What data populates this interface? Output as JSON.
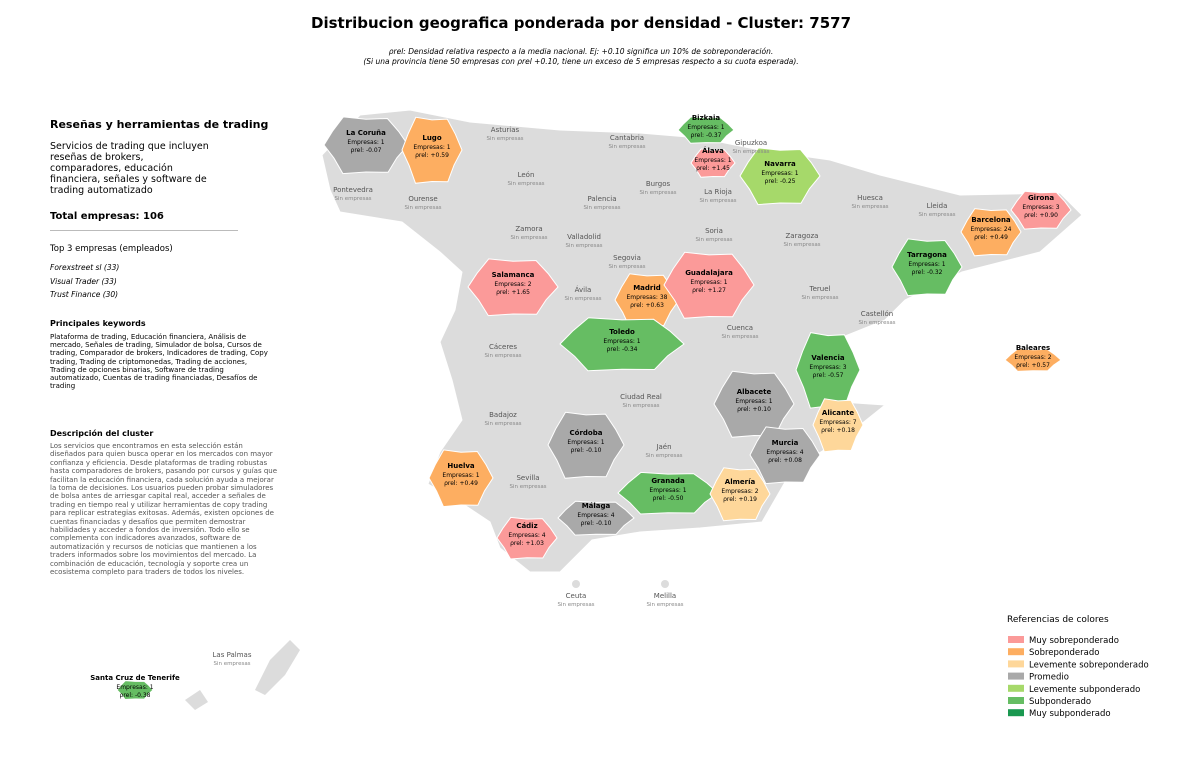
{
  "title": "Distribucion geografica ponderada por densidad - Cluster: 7577",
  "subtitle": [
    "ρrel: Densidad relativa respecto a la media nacional. Ej: +0.10 significa un 10% de sobreponderación.",
    "(Si una provincia tiene 50 empresas con ρrel +0.10, tiene un exceso de 5 empresas respecto a su cuota esperada)."
  ],
  "sidebar": {
    "heading": "Reseñas y herramientas de trading",
    "summary": "Servicios de trading que incluyen reseñas de brokers, comparadores, educación financiera, señales y software de trading automatizado",
    "total": "Total empresas: 106",
    "top_title": "Top 3 empresas (empleados)",
    "top": [
      "Forexstreet sl (33)",
      "Visual Trader (33)",
      "Trust Finance (30)"
    ],
    "keywords_title": "Principales keywords",
    "keywords": "Plataforma de trading, Educación financiera, Análisis de mercado, Señales de trading, Simulador de bolsa, Cursos de trading, Comparador de brokers, Indicadores de trading, Copy trading, Trading de criptomonedas, Trading de acciones, Trading de opciones binarias, Software de trading automatizado, Cuentas de trading financiadas, Desafíos de trading",
    "description_title": "Descripción del cluster",
    "description": "Los servicios que encontramos en esta selección están diseñados para quien busca operar en los mercados con mayor confianza y eficiencia. Desde plataformas de trading robustas hasta comparadores de brokers, pasando por cursos y guías que facilitan la educación financiera, cada solución ayuda a mejorar la toma de decisiones. Los usuarios pueden probar simuladores de bolsa antes de arriesgar capital real, acceder a señales de trading en tiempo real y utilizar herramientas de copy trading para replicar estrategias exitosas. Además, existen opciones de cuentas financiadas y desafíos que permiten demostrar habilidades y acceder a fondos de inversión. Todo ello se complementa con indicadores avanzados, software de automatización y recursos de noticias que mantienen a los traders informados sobre los movimientos del mercado. La combinación de educación, tecnología y soporte crea un ecosistema completo para traders de todos los niveles."
  },
  "provinces": [
    {
      "name": "La Coruña",
      "companies": "Empresas: 1",
      "density": "ρrel: -0.07",
      "color": "#a9a9a9"
    },
    {
      "name": "Lugo",
      "companies": "Empresas: 1",
      "density": "ρrel: +0.59",
      "color": "#fdae61"
    },
    {
      "name": "Bizkaia",
      "companies": "Empresas: 1",
      "density": "ρrel: -0.37",
      "color": "#66bd63"
    },
    {
      "name": "Álava",
      "companies": "Empresas: 1",
      "density": "ρrel: +1.45",
      "color": "#fb9a99"
    },
    {
      "name": "Navarra",
      "companies": "Empresas: 1",
      "density": "ρrel: -0.25",
      "color": "#a6d96a"
    },
    {
      "name": "Girona",
      "companies": "Empresas: 3",
      "density": "ρrel: +0.90",
      "color": "#fb9a99"
    },
    {
      "name": "Barcelona",
      "companies": "Empresas: 24",
      "density": "ρrel: +0.49",
      "color": "#fdae61"
    },
    {
      "name": "Tarragona",
      "companies": "Empresas: 1",
      "density": "ρrel: -0.32",
      "color": "#66bd63"
    },
    {
      "name": "Salamanca",
      "companies": "Empresas: 2",
      "density": "ρrel: +1.65",
      "color": "#fb9a99"
    },
    {
      "name": "Madrid",
      "companies": "Empresas: 38",
      "density": "ρrel: +0.63",
      "color": "#fdae61"
    },
    {
      "name": "Guadalajara",
      "companies": "Empresas: 1",
      "density": "ρrel: +1.27",
      "color": "#fb9a99"
    },
    {
      "name": "Toledo",
      "companies": "Empresas: 1",
      "density": "ρrel: -0.34",
      "color": "#66bd63"
    },
    {
      "name": "Valencia",
      "companies": "Empresas: 3",
      "density": "ρrel: -0.57",
      "color": "#66bd63"
    },
    {
      "name": "Baleares",
      "companies": "Empresas: 2",
      "density": "ρrel: +0.57",
      "color": "#fdae61"
    },
    {
      "name": "Albacete",
      "companies": "Empresas: 1",
      "density": "ρrel: +0.10",
      "color": "#a9a9a9"
    },
    {
      "name": "Alicante",
      "companies": "Empresas: 7",
      "density": "ρrel: +0.18",
      "color": "#fed79a"
    },
    {
      "name": "Córdoba",
      "companies": "Empresas: 1",
      "density": "ρrel: -0.10",
      "color": "#a9a9a9"
    },
    {
      "name": "Murcia",
      "companies": "Empresas: 4",
      "density": "ρrel: +0.08",
      "color": "#a9a9a9"
    },
    {
      "name": "Huelva",
      "companies": "Empresas: 1",
      "density": "ρrel: +0.49",
      "color": "#fdae61"
    },
    {
      "name": "Granada",
      "companies": "Empresas: 1",
      "density": "ρrel: -0.50",
      "color": "#66bd63"
    },
    {
      "name": "Almería",
      "companies": "Empresas: 2",
      "density": "ρrel: +0.19",
      "color": "#fed79a"
    },
    {
      "name": "Málaga",
      "companies": "Empresas: 4",
      "density": "ρrel: -0.10",
      "color": "#a9a9a9"
    },
    {
      "name": "Cádiz",
      "companies": "Empresas: 4",
      "density": "ρrel: +1.03",
      "color": "#fb9a99"
    },
    {
      "name": "Santa Cruz de Tenerife",
      "companies": "Empresas: 1",
      "density": "ρrel: -0.38",
      "color": "#66bd63"
    },
    {
      "name": "Asturias",
      "status": "Sin empresas"
    },
    {
      "name": "Cantabria",
      "status": "Sin empresas"
    },
    {
      "name": "Gipuzkoa",
      "status": "Sin empresas"
    },
    {
      "name": "León",
      "status": "Sin empresas"
    },
    {
      "name": "Pontevedra",
      "status": "Sin empresas"
    },
    {
      "name": "Ourense",
      "status": "Sin empresas"
    },
    {
      "name": "Palencia",
      "status": "Sin empresas"
    },
    {
      "name": "Burgos",
      "status": "Sin empresas"
    },
    {
      "name": "La Rioja",
      "status": "Sin empresas"
    },
    {
      "name": "Huesca",
      "status": "Sin empresas"
    },
    {
      "name": "Lleida",
      "status": "Sin empresas"
    },
    {
      "name": "Zamora",
      "status": "Sin empresas"
    },
    {
      "name": "Valladolid",
      "status": "Sin empresas"
    },
    {
      "name": "Soria",
      "status": "Sin empresas"
    },
    {
      "name": "Zaragoza",
      "status": "Sin empresas"
    },
    {
      "name": "Segovia",
      "status": "Sin empresas"
    },
    {
      "name": "Ávila",
      "status": "Sin empresas"
    },
    {
      "name": "Teruel",
      "status": "Sin empresas"
    },
    {
      "name": "Cuenca",
      "status": "Sin empresas"
    },
    {
      "name": "Castellón",
      "status": "Sin empresas"
    },
    {
      "name": "Cáceres",
      "status": "Sin empresas"
    },
    {
      "name": "Ciudad Real",
      "status": "Sin empresas"
    },
    {
      "name": "Badajoz",
      "status": "Sin empresas"
    },
    {
      "name": "Jaén",
      "status": "Sin empresas"
    },
    {
      "name": "Sevilla",
      "status": "Sin empresas"
    },
    {
      "name": "Ceuta",
      "status": "Sin empresas"
    },
    {
      "name": "Melilla",
      "status": "Sin empresas"
    },
    {
      "name": "Las Palmas",
      "status": "Sin empresas"
    }
  ],
  "legend": {
    "title": "Referencias de colores",
    "items": [
      {
        "label": "Muy sobreponderado",
        "color": "#fb9a99"
      },
      {
        "label": "Sobreponderado",
        "color": "#fdae61"
      },
      {
        "label": "Levemente sobreponderado",
        "color": "#fed79a"
      },
      {
        "label": "Promedio",
        "color": "#a9a9a9"
      },
      {
        "label": "Levemente subponderado",
        "color": "#a6d96a"
      },
      {
        "label": "Subponderado",
        "color": "#66bd63"
      },
      {
        "label": "Muy subponderado",
        "color": "#1a9850"
      }
    ]
  }
}
